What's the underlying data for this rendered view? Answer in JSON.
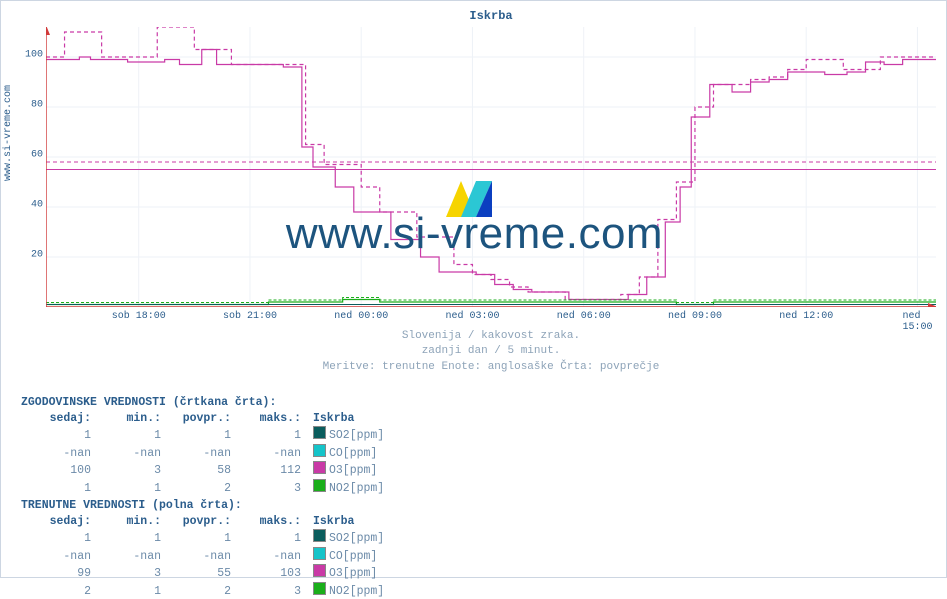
{
  "title": "Iskrba",
  "site_label": "www.si-vreme.com",
  "watermark": "www.si-vreme.com",
  "subtitle1": "Slovenija / kakovost zraka.",
  "subtitle2": "zadnji dan / 5 minut.",
  "subtitle3": "Meritve: trenutne  Enote: anglosaške  Črta: povprečje",
  "chart": {
    "type": "line-step",
    "xlim": [
      0,
      24
    ],
    "ylim": [
      0,
      112
    ],
    "yticks": [
      20,
      40,
      60,
      80,
      100
    ],
    "xticks": [
      {
        "pos": 2.5,
        "label": "sob 18:00"
      },
      {
        "pos": 5.5,
        "label": "sob 21:00"
      },
      {
        "pos": 8.5,
        "label": "ned 00:00"
      },
      {
        "pos": 11.5,
        "label": "ned 03:00"
      },
      {
        "pos": 14.5,
        "label": "ned 06:00"
      },
      {
        "pos": 17.5,
        "label": "ned 09:00"
      },
      {
        "pos": 20.5,
        "label": "ned 12:00"
      },
      {
        "pos": 23.5,
        "label": "ned 15:00"
      }
    ],
    "avg_lines": {
      "solid": 55,
      "dashed": 58
    },
    "colors": {
      "axis": "#d13a3a",
      "grid": "#eef2f7",
      "o3_solid": "#c93aa6",
      "o3_dashed": "#c93aa6",
      "no2": "#1aae1a",
      "so2": "#0a5d5d",
      "co": "#15c4c9"
    },
    "o3_current": [
      [
        0,
        99
      ],
      [
        0.9,
        100
      ],
      [
        1.2,
        99
      ],
      [
        1.8,
        99
      ],
      [
        2.2,
        98
      ],
      [
        3.2,
        99
      ],
      [
        3.6,
        97
      ],
      [
        4.2,
        103
      ],
      [
        4.6,
        97
      ],
      [
        5.3,
        97
      ],
      [
        6.4,
        96
      ],
      [
        6.9,
        64
      ],
      [
        7.2,
        56
      ],
      [
        7.4,
        56
      ],
      [
        7.8,
        48
      ],
      [
        8.3,
        38
      ],
      [
        8.8,
        38
      ],
      [
        9.3,
        27
      ],
      [
        9.6,
        27
      ],
      [
        10.1,
        20
      ],
      [
        10.6,
        14
      ],
      [
        11.1,
        14
      ],
      [
        11.6,
        13
      ],
      [
        12.1,
        9
      ],
      [
        12.6,
        7
      ],
      [
        13.1,
        6
      ],
      [
        13.6,
        6
      ],
      [
        14.1,
        3
      ],
      [
        14.7,
        3
      ],
      [
        15.2,
        3
      ],
      [
        15.7,
        5
      ],
      [
        16.2,
        12
      ],
      [
        16.7,
        34
      ],
      [
        17.1,
        48
      ],
      [
        17.4,
        76
      ],
      [
        17.9,
        89
      ],
      [
        18.5,
        86
      ],
      [
        19.0,
        90
      ],
      [
        19.5,
        91
      ],
      [
        20.0,
        94
      ],
      [
        20.5,
        94
      ],
      [
        21.0,
        93
      ],
      [
        21.6,
        94
      ],
      [
        22.1,
        98
      ],
      [
        22.6,
        97
      ],
      [
        23.1,
        99
      ],
      [
        23.6,
        99
      ],
      [
        24.0,
        99
      ]
    ],
    "o3_hist": [
      [
        0,
        100
      ],
      [
        0.5,
        110
      ],
      [
        1.0,
        110
      ],
      [
        1.5,
        100
      ],
      [
        2.0,
        100
      ],
      [
        2.5,
        100
      ],
      [
        3.0,
        112
      ],
      [
        3.5,
        112
      ],
      [
        4.0,
        103
      ],
      [
        4.5,
        103
      ],
      [
        5.0,
        97
      ],
      [
        5.5,
        97
      ],
      [
        6.0,
        97
      ],
      [
        6.5,
        97
      ],
      [
        7.0,
        65
      ],
      [
        7.5,
        57
      ],
      [
        8.0,
        57
      ],
      [
        8.5,
        48
      ],
      [
        9.0,
        38
      ],
      [
        9.5,
        38
      ],
      [
        10.0,
        28
      ],
      [
        10.5,
        28
      ],
      [
        11.0,
        17
      ],
      [
        11.5,
        13
      ],
      [
        12.0,
        11
      ],
      [
        12.5,
        8
      ],
      [
        13.0,
        6
      ],
      [
        13.5,
        6
      ],
      [
        14.0,
        3
      ],
      [
        14.5,
        3
      ],
      [
        15.0,
        3
      ],
      [
        15.5,
        5
      ],
      [
        16.0,
        12
      ],
      [
        16.5,
        35
      ],
      [
        17.0,
        50
      ],
      [
        17.5,
        80
      ],
      [
        18.0,
        89
      ],
      [
        18.5,
        89
      ],
      [
        19.0,
        91
      ],
      [
        19.5,
        92
      ],
      [
        20.0,
        95
      ],
      [
        20.5,
        99
      ],
      [
        21.0,
        99
      ],
      [
        21.5,
        95
      ],
      [
        22.0,
        95
      ],
      [
        22.5,
        100
      ],
      [
        23.0,
        100
      ],
      [
        23.5,
        100
      ],
      [
        24.0,
        100
      ]
    ],
    "no2_current": [
      [
        0,
        1
      ],
      [
        3,
        1
      ],
      [
        6,
        2
      ],
      [
        7,
        2
      ],
      [
        8,
        3
      ],
      [
        9,
        2
      ],
      [
        10,
        2
      ],
      [
        11,
        2
      ],
      [
        12,
        2
      ],
      [
        13,
        2
      ],
      [
        14,
        2
      ],
      [
        15,
        2
      ],
      [
        16,
        2
      ],
      [
        17,
        1
      ],
      [
        18,
        2
      ],
      [
        20,
        2
      ],
      [
        22,
        2
      ],
      [
        24,
        2
      ]
    ],
    "so2_current": [
      [
        0,
        1
      ],
      [
        24,
        1
      ]
    ]
  },
  "hist_header": "ZGODOVINSKE VREDNOSTI (črtkana črta):",
  "cur_header": "TRENUTNE VREDNOSTI (polna črta):",
  "cols": {
    "c1": "sedaj:",
    "c2": "min.:",
    "c3": "povpr.:",
    "c4": "maks.:",
    "loc": "Iskrba"
  },
  "hist_rows": [
    {
      "v": [
        "1",
        "1",
        "1",
        "1"
      ],
      "param": "SO2[ppm]",
      "color": "#0a5d5d"
    },
    {
      "v": [
        "-nan",
        "-nan",
        "-nan",
        "-nan"
      ],
      "param": "CO[ppm]",
      "color": "#15c4c9"
    },
    {
      "v": [
        "100",
        "3",
        "58",
        "112"
      ],
      "param": "O3[ppm]",
      "color": "#c93aa6"
    },
    {
      "v": [
        "1",
        "1",
        "2",
        "3"
      ],
      "param": "NO2[ppm]",
      "color": "#1aae1a"
    }
  ],
  "cur_rows": [
    {
      "v": [
        "1",
        "1",
        "1",
        "1"
      ],
      "param": "SO2[ppm]",
      "color": "#0a5d5d"
    },
    {
      "v": [
        "-nan",
        "-nan",
        "-nan",
        "-nan"
      ],
      "param": "CO[ppm]",
      "color": "#15c4c9"
    },
    {
      "v": [
        "99",
        "3",
        "55",
        "103"
      ],
      "param": "O3[ppm]",
      "color": "#c93aa6"
    },
    {
      "v": [
        "2",
        "1",
        "2",
        "3"
      ],
      "param": "NO2[ppm]",
      "color": "#1aae1a"
    }
  ]
}
